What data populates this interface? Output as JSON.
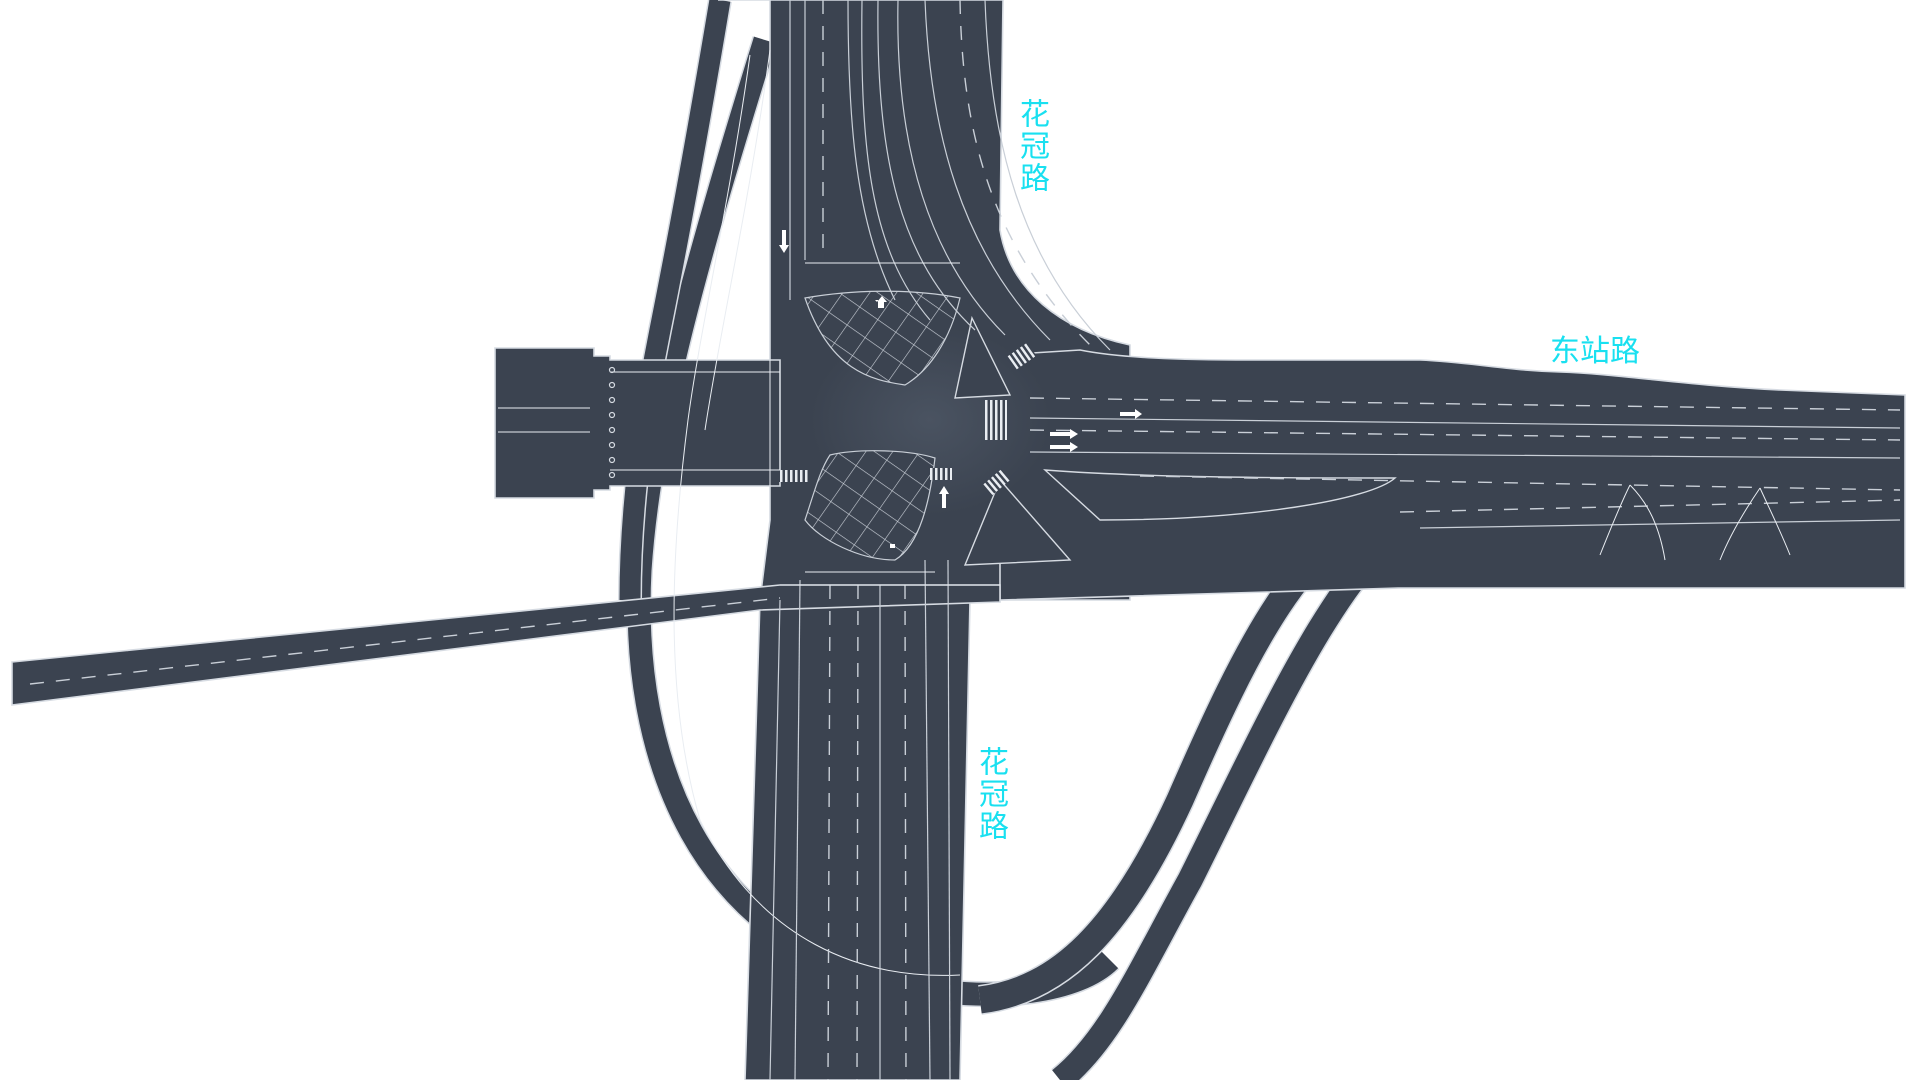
{
  "labels": {
    "north_road": "花冠路",
    "south_road": "花冠路",
    "east_road": "东站路"
  },
  "colors": {
    "background": "#ffffff",
    "road_surface": "#3b4350",
    "road_edge": "#d6dbe2",
    "lane_marking": "#c9cfd7",
    "label_text": "#19e0f0"
  }
}
